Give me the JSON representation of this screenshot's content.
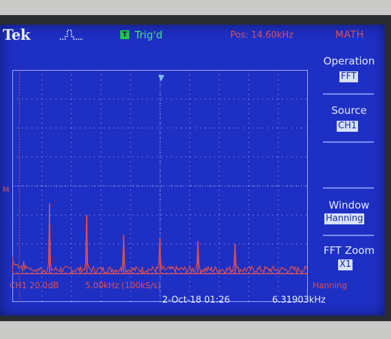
{
  "header": {
    "brand": "Tek",
    "trigger_mark": "T",
    "trigger_status": "Trig'd",
    "position": "Pos: 14.60kHz",
    "mode": "MATH"
  },
  "menu": {
    "operation_title": "Operation",
    "operation_value": "FFT",
    "source_title": "Source",
    "source_value": "CH1",
    "window_title": "Window",
    "window_value": "Hanning",
    "zoom_title": "FFT Zoom",
    "zoom_value": "X1"
  },
  "readout": {
    "ch1_scale": "CH1 20.0dB",
    "timebase": "5.00kHz (100kS/s)",
    "window": "Hanning",
    "datetime": "2-Oct-18 01:26",
    "frequency": "6.31903kHz"
  },
  "ref_marker": "M",
  "chart_data": {
    "type": "line",
    "title": "",
    "xlabel": "",
    "ylabel": "",
    "x_unit": "kHz",
    "x_per_division": 5.0,
    "y_per_division_db": 20.0,
    "xlim": [
      0,
      50
    ],
    "divisions": {
      "x": 10,
      "y": 8
    },
    "grid": true,
    "cursor_x_khz": 1.2,
    "noise_floor_div": 1.0,
    "peaks": [
      {
        "x_khz": 0.0,
        "height_div": 1.6
      },
      {
        "x_khz": 6.3,
        "height_div": 3.4
      },
      {
        "x_khz": 12.6,
        "height_div": 3.0
      },
      {
        "x_khz": 18.8,
        "height_div": 2.3
      },
      {
        "x_khz": 25.0,
        "height_div": 2.2
      },
      {
        "x_khz": 31.4,
        "height_div": 2.1
      },
      {
        "x_khz": 37.7,
        "height_div": 2.0
      }
    ],
    "colors": {
      "trace": "#e0504e",
      "grid": "#c7d0ff",
      "background": "#1e2fc4"
    }
  }
}
